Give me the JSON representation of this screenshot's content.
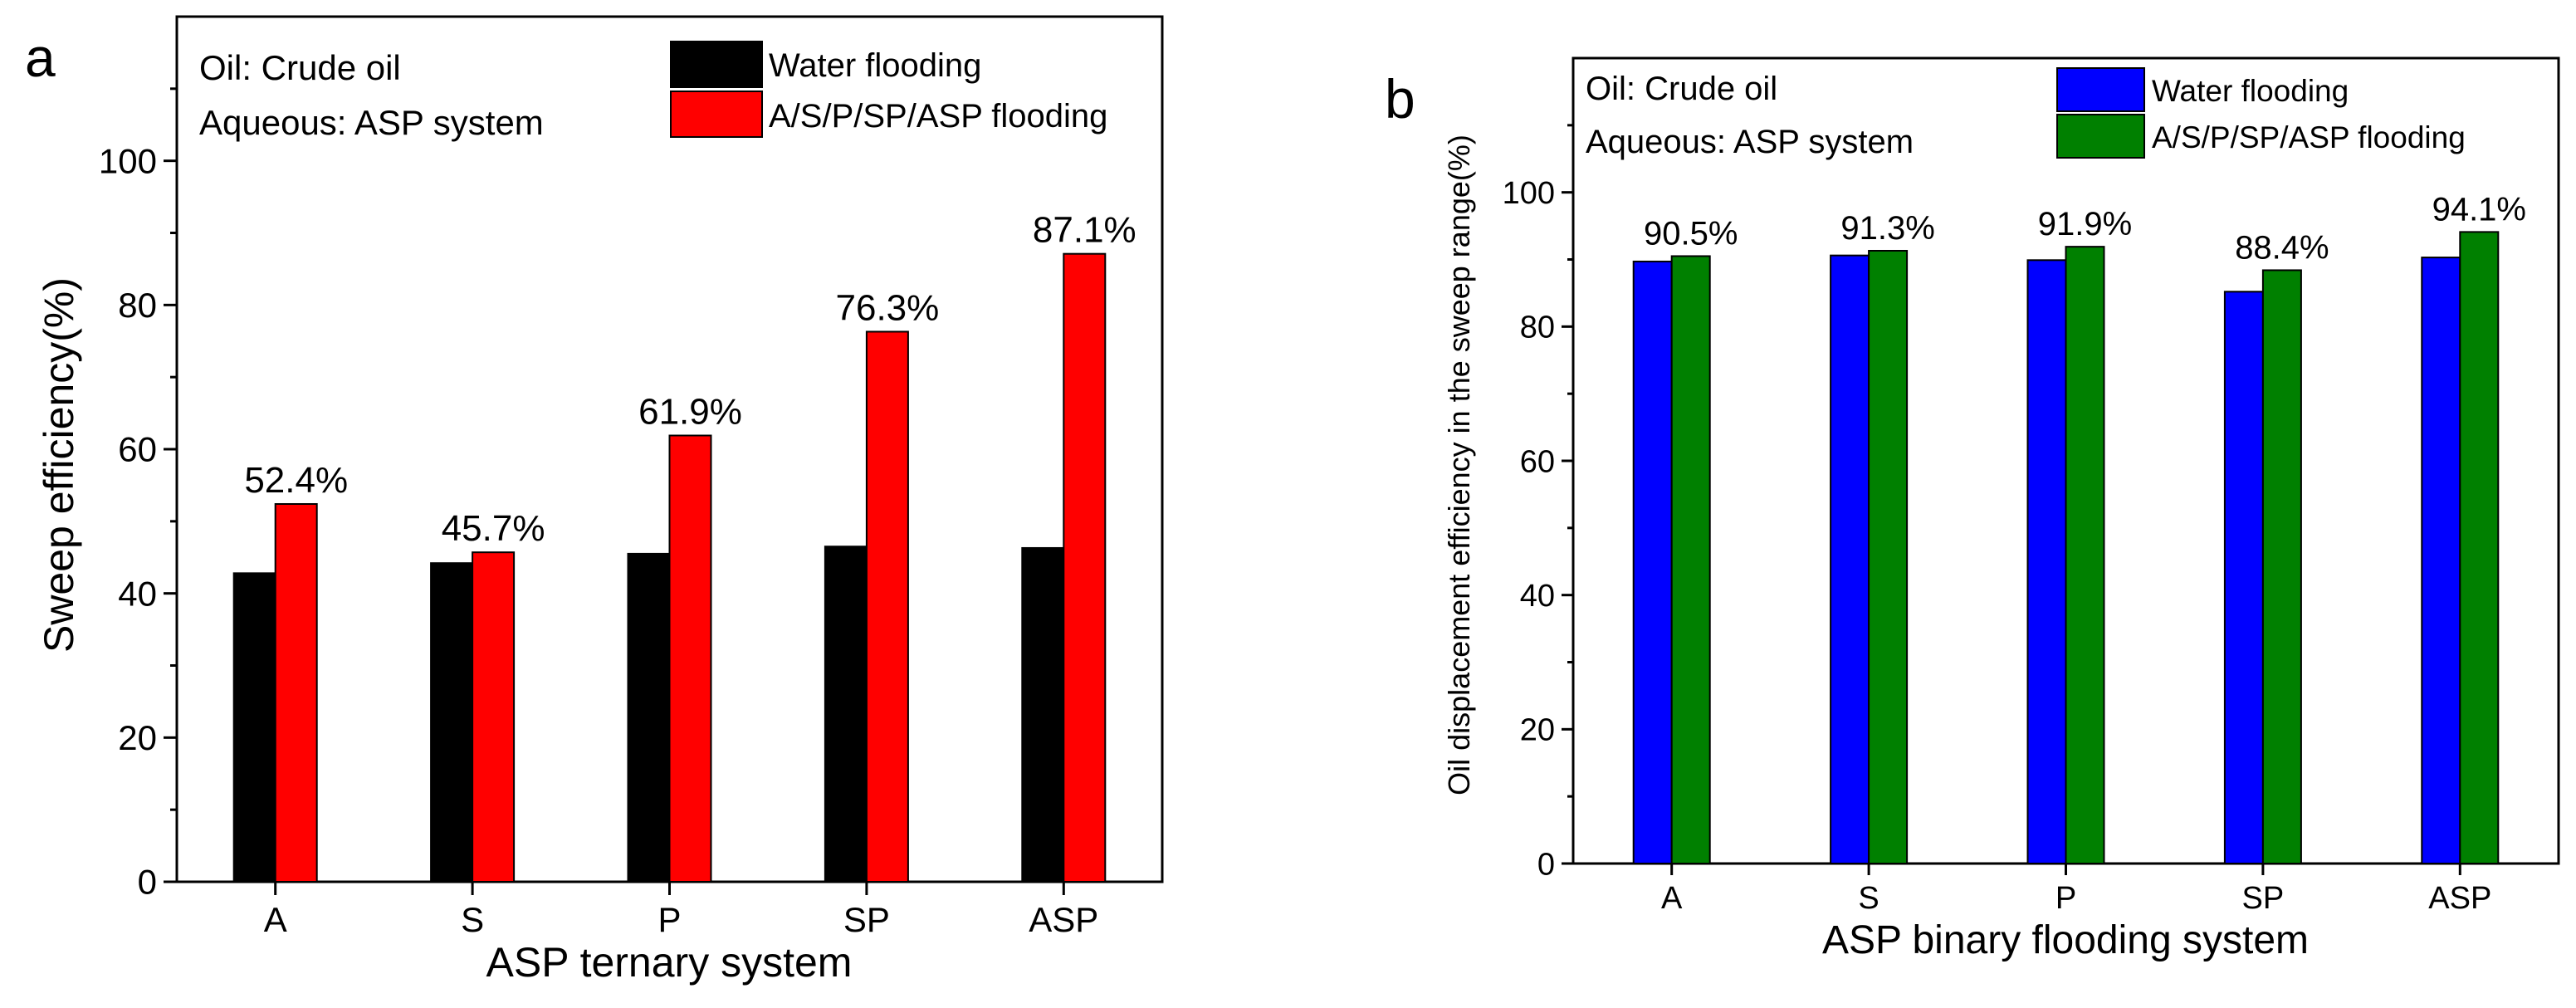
{
  "chart_data": [
    {
      "type": "bar",
      "panel_label": "a",
      "categories": [
        "A",
        "S",
        "P",
        "SP",
        "ASP"
      ],
      "series": [
        {
          "name": "Water flooding",
          "values": [
            42.8,
            44.2,
            45.5,
            46.5,
            46.3
          ],
          "color": "#000000"
        },
        {
          "name": "A/S/P/SP/ASP flooding",
          "values": [
            52.4,
            45.7,
            61.9,
            76.3,
            87.1
          ],
          "color": "#ff0000"
        }
      ],
      "data_labels": [
        "52.4%",
        "45.7%",
        "61.9%",
        "76.3%",
        "87.1%"
      ],
      "info_lines": [
        "Oil: Crude oil",
        "Aqueous: ASP system"
      ],
      "xlabel": "ASP ternary system",
      "ylabel": "Sweep efficiency(%)",
      "ylim": [
        0,
        120
      ],
      "yticks": [
        0,
        20,
        40,
        60,
        80,
        100
      ],
      "legend_position": "top-right"
    },
    {
      "type": "bar",
      "panel_label": "b",
      "categories": [
        "A",
        "S",
        "P",
        "SP",
        "ASP"
      ],
      "series": [
        {
          "name": "Water flooding",
          "values": [
            89.7,
            90.6,
            89.9,
            85.2,
            90.3
          ],
          "color": "#0000ff"
        },
        {
          "name": "A/S/P/SP/ASP flooding",
          "values": [
            90.5,
            91.3,
            91.9,
            88.4,
            94.1
          ],
          "color": "#008000"
        }
      ],
      "data_labels": [
        "90.5%",
        "91.3%",
        "91.9%",
        "88.4%",
        "94.1%"
      ],
      "info_lines": [
        "Oil: Crude oil",
        "Aqueous: ASP system"
      ],
      "xlabel": "ASP binary flooding system",
      "ylabel": "Oil displacement efficiency in the sweep range(%)",
      "ylim": [
        0,
        120
      ],
      "yticks": [
        0,
        20,
        40,
        60,
        80,
        100
      ],
      "legend_position": "top-right"
    }
  ]
}
